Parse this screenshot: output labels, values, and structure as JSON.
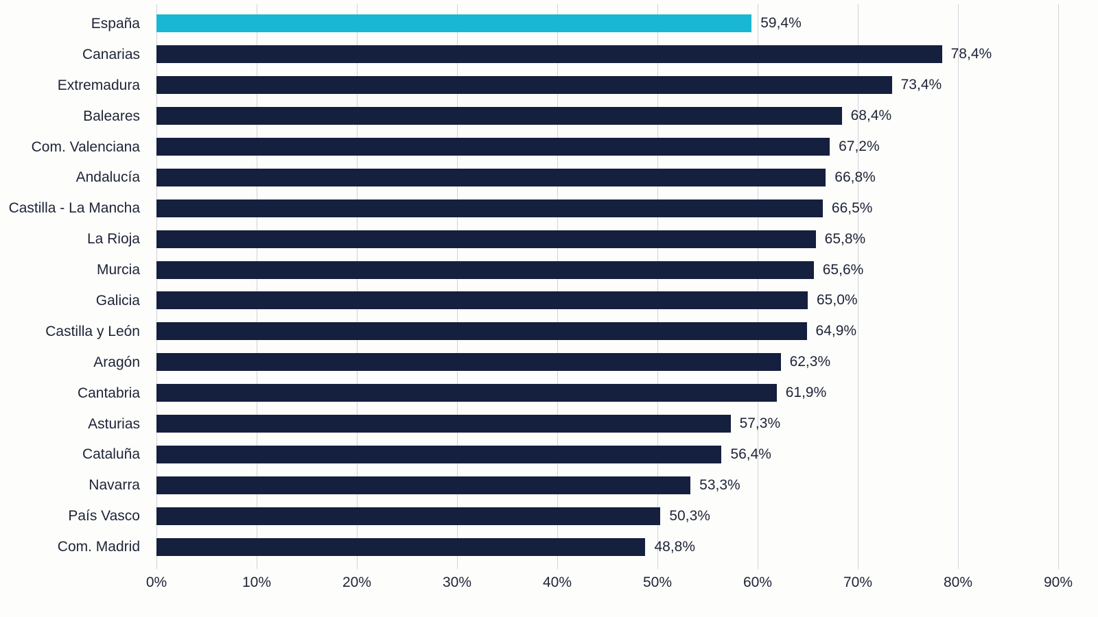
{
  "chart_data": {
    "type": "bar",
    "orientation": "horizontal",
    "title": "",
    "xlabel": "",
    "ylabel": "",
    "xlim": [
      0,
      90
    ],
    "grid": "vertical",
    "legend": "none",
    "categories": [
      "España",
      "Canarias",
      "Extremadura",
      "Baleares",
      "Com. Valenciana",
      "Andalucía",
      "Castilla - La Mancha",
      "La Rioja",
      "Murcia",
      "Galicia",
      "Castilla y León",
      "Aragón",
      "Cantabria",
      "Asturias",
      "Cataluña",
      "Navarra",
      "País Vasco",
      "Com. Madrid"
    ],
    "values": [
      59.4,
      78.4,
      73.4,
      68.4,
      67.2,
      66.8,
      66.5,
      65.8,
      65.6,
      65.0,
      64.9,
      62.3,
      61.9,
      57.3,
      56.4,
      53.3,
      50.3,
      48.8
    ],
    "value_labels": [
      "59,4%",
      "78,4%",
      "73,4%",
      "68,4%",
      "67,2%",
      "66,8%",
      "66,5%",
      "65,8%",
      "65,6%",
      "65,0%",
      "64,9%",
      "62,3%",
      "61,9%",
      "57,3%",
      "56,4%",
      "53,3%",
      "50,3%",
      "48,8%"
    ],
    "highlight_index": 0,
    "x_ticks": [
      "0%",
      "10%",
      "20%",
      "30%",
      "40%",
      "50%",
      "60%",
      "70%",
      "80%",
      "90%"
    ],
    "colors": {
      "bar": "#151f3e",
      "highlight": "#19b7d3",
      "gridline": "#d2d2da",
      "text": "#1e2337",
      "background": "#fdfdfb"
    }
  }
}
